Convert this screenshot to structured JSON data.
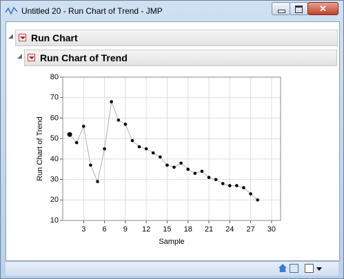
{
  "window": {
    "title": "Untitled 20 - Run Chart of Trend - JMP"
  },
  "outline": {
    "title": "Run Chart",
    "subtitle": "Run Chart of Trend"
  },
  "chart_data": {
    "type": "line",
    "x": [
      1,
      2,
      3,
      4,
      5,
      6,
      7,
      8,
      9,
      10,
      11,
      12,
      13,
      14,
      15,
      16,
      17,
      18,
      19,
      20,
      21,
      22,
      23,
      24,
      25,
      26,
      27,
      28
    ],
    "values": [
      52,
      48,
      56,
      37,
      29,
      45,
      68,
      59,
      57,
      49,
      46,
      45,
      43,
      41,
      37,
      36,
      38,
      35,
      33,
      34,
      31,
      30,
      28,
      27,
      27,
      26,
      23,
      20
    ],
    "xlabel": "Sample",
    "ylabel": "Run Chart of Trend",
    "xlim": [
      0,
      31.3
    ],
    "ylim": [
      10,
      80
    ],
    "xticks": [
      3,
      6,
      9,
      12,
      15,
      18,
      21,
      24,
      27,
      30
    ],
    "yticks": [
      10,
      20,
      30,
      40,
      50,
      60,
      70,
      80
    ],
    "grid": true,
    "line_color": "#b0b0b0",
    "marker_color": "#000000"
  }
}
